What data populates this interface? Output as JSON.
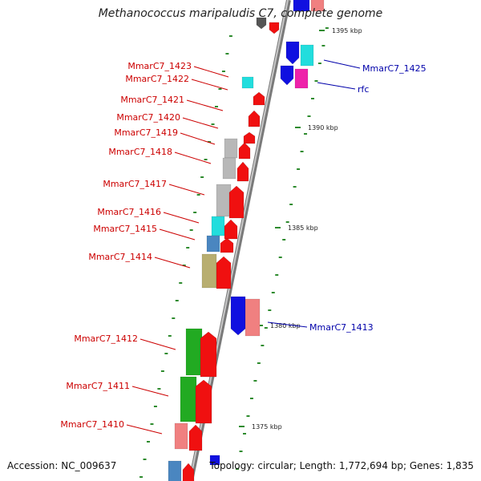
{
  "title": "Methanococcus maripaludis C7, complete genome",
  "footer": {
    "accession": "Accession: NC_009637",
    "summary": "Topology: circular; Length: 1,772,694 bp; Genes: 1,835"
  },
  "colors": {
    "backbone": "#8c8c8c",
    "tick": "#2e8b2e",
    "label_left": "#cc0000",
    "label_right": "#0000aa",
    "kbp_text": "#222222"
  },
  "kbp_labels": [
    "1395 kbp",
    "1390 kbp",
    "1385 kbp",
    "1380 kbp",
    "1375 kbp"
  ],
  "genes_left_labels": [
    "MmarC7_1423",
    "MmarC7_1422",
    "MmarC7_1421",
    "MmarC7_1420",
    "MmarC7_1419",
    "MmarC7_1418",
    "MmarC7_1417",
    "MmarC7_1416",
    "MmarC7_1415",
    "MmarC7_1414",
    "MmarC7_1412",
    "MmarC7_1411",
    "MmarC7_1410"
  ],
  "genes_right_labels": [
    "MmarC7_1425",
    "rfc",
    "MmarC7_1413"
  ],
  "feature_colors": [
    "red",
    "salmon",
    "cyan",
    "gray",
    "khaki",
    "steelblue",
    "green",
    "blue",
    "magenta"
  ]
}
